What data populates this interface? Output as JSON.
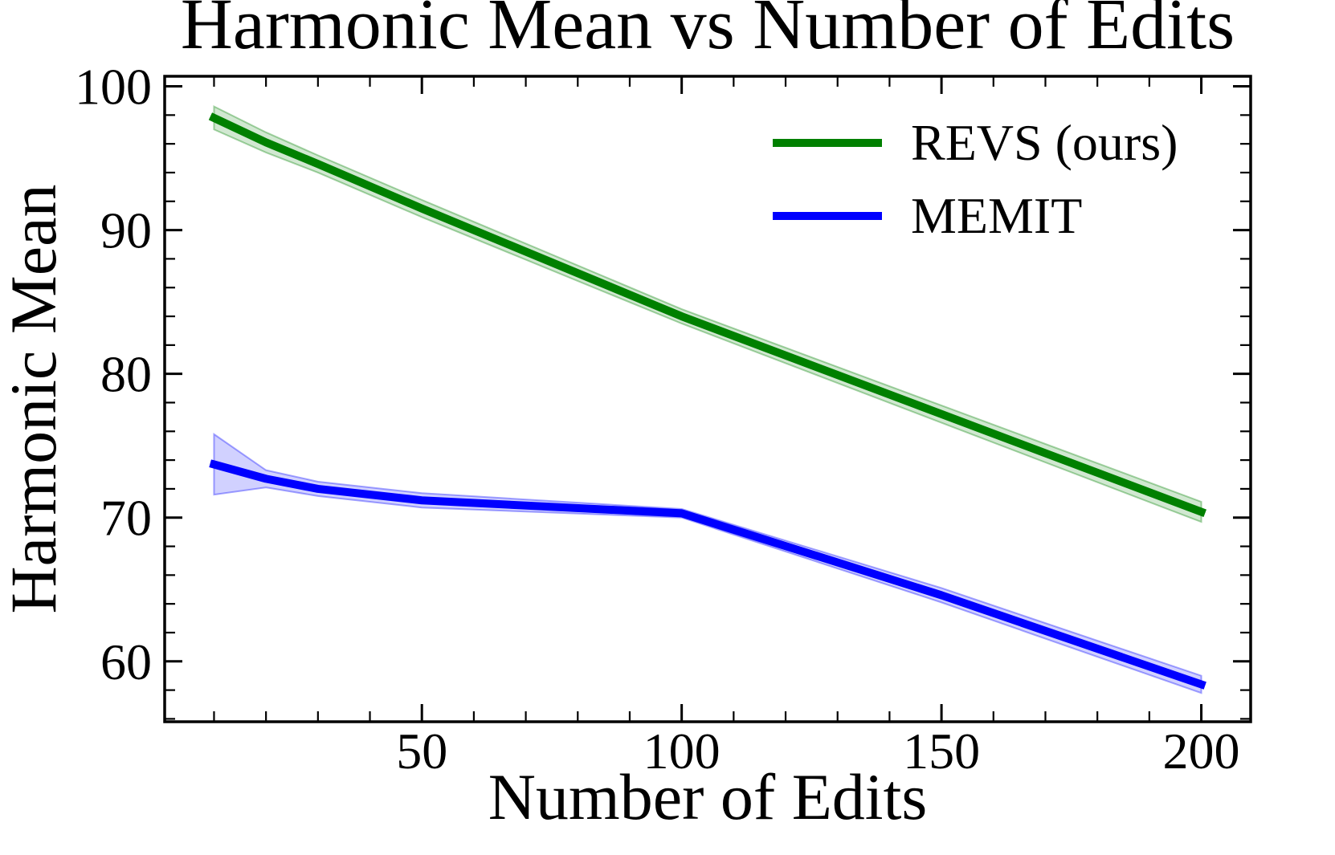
{
  "chart_data": {
    "type": "line",
    "title": "Harmonic Mean vs Number of Edits",
    "xlabel": "Number of Edits",
    "ylabel": "Harmonic Mean",
    "x": [
      10,
      20,
      30,
      50,
      100,
      150,
      200
    ],
    "series": [
      {
        "name": "REVS (ours)",
        "color": "#008000",
        "values": [
          97.8,
          96.1,
          94.6,
          91.5,
          84.0,
          77.2,
          70.4
        ],
        "band_hi": [
          98.6,
          96.8,
          95.2,
          92.1,
          84.5,
          77.8,
          71.1
        ],
        "band_lo": [
          97.0,
          95.4,
          94.0,
          90.9,
          83.5,
          76.6,
          69.7
        ]
      },
      {
        "name": "MEMIT",
        "color": "#0000ff",
        "values": [
          73.7,
          72.7,
          72.0,
          71.2,
          70.3,
          64.6,
          58.4
        ],
        "band_hi": [
          75.8,
          73.3,
          72.5,
          71.7,
          70.6,
          65.1,
          59.0
        ],
        "band_lo": [
          71.6,
          72.1,
          71.5,
          70.7,
          70.0,
          64.1,
          57.8
        ]
      }
    ],
    "xlim": [
      0.5,
      209.5
    ],
    "ylim": [
      55.8,
      100.7
    ],
    "xticks": [
      50,
      100,
      150,
      200
    ],
    "xticks_minor": [
      10,
      20,
      30,
      40,
      60,
      70,
      80,
      90,
      110,
      120,
      130,
      140,
      160,
      170,
      180,
      190
    ],
    "yticks": [
      60,
      70,
      80,
      90,
      100
    ],
    "yticks_minor": [
      56,
      58,
      62,
      64,
      66,
      68,
      72,
      74,
      76,
      78,
      82,
      84,
      86,
      88,
      92,
      94,
      96,
      98
    ],
    "band_alpha": 0.18,
    "grid": false,
    "legend_position": "upper right",
    "axis_color": "#000000",
    "background_color": "#ffffff"
  }
}
